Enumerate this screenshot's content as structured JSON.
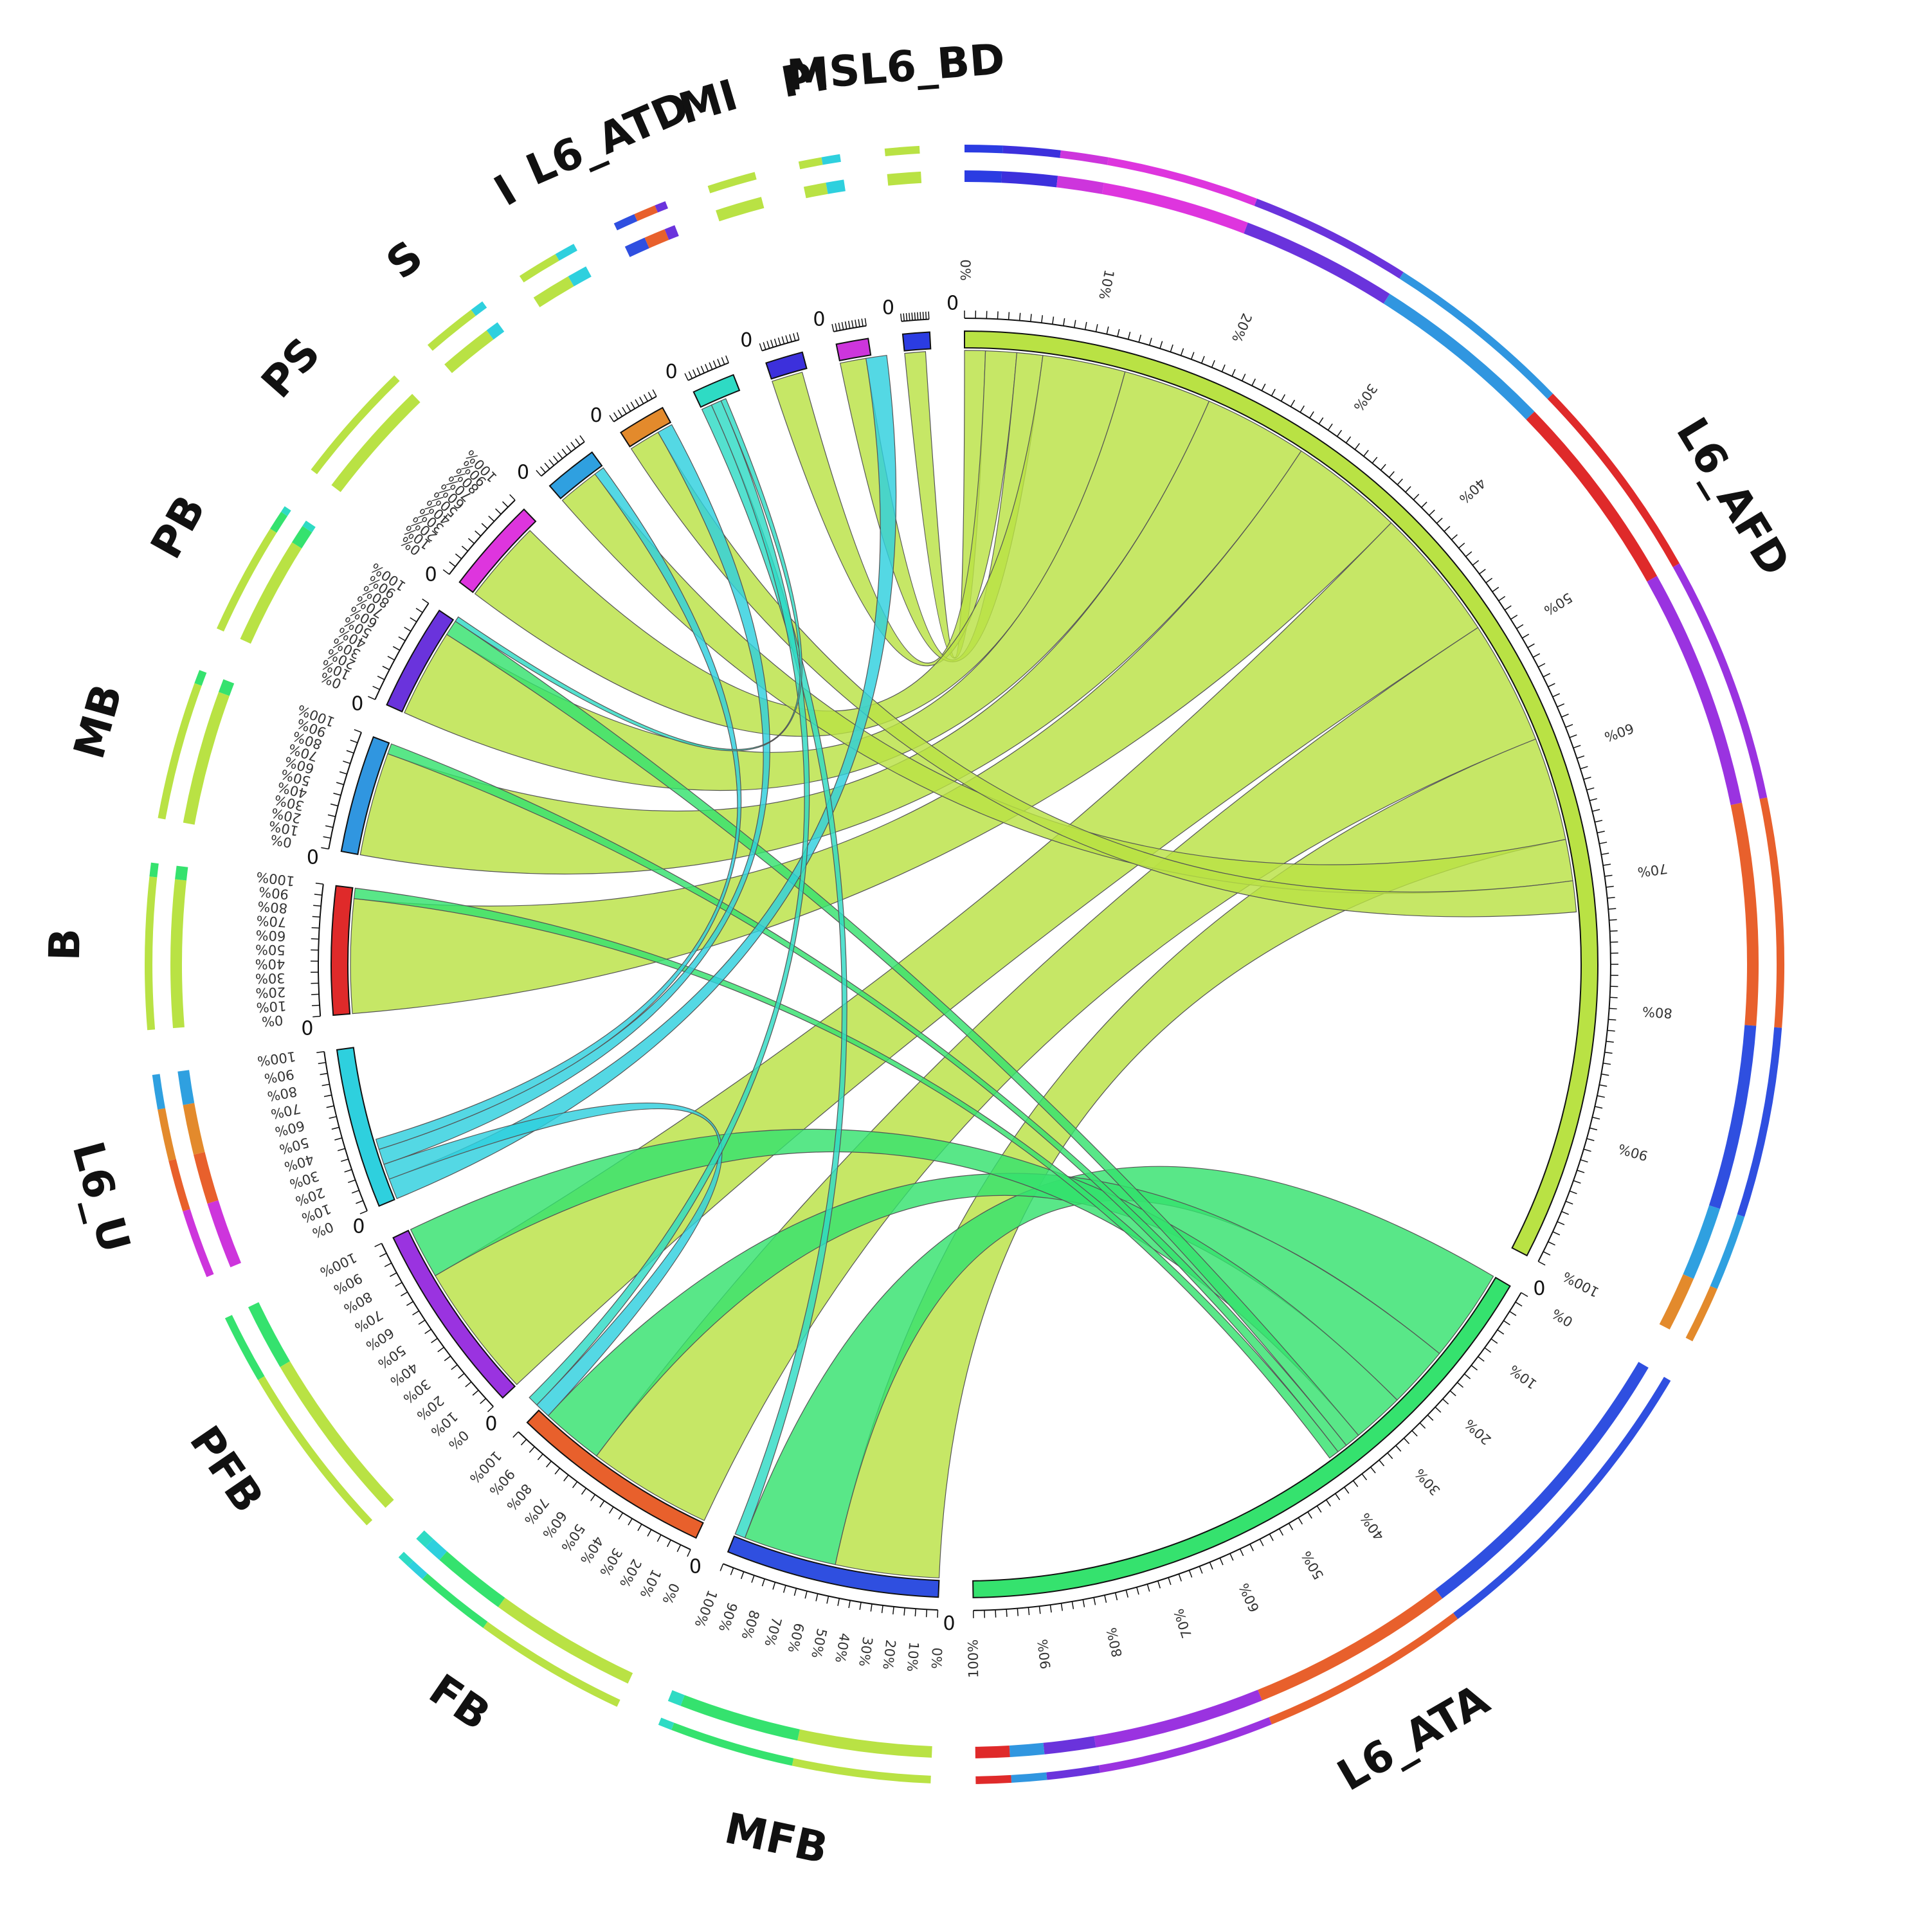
{
  "chart_data": {
    "type": "chord",
    "title": "",
    "colors": {
      "L6_AFD": "#b9e244",
      "L6_ATA": "#35e26e",
      "MFB": "#2f4fe0",
      "FB": "#e8602c",
      "PFB": "#9a33e0",
      "L6_U": "#2ed0de",
      "B": "#df2a2a",
      "MB": "#3096e0",
      "PB": "#6a33dc",
      "PS": "#de35de",
      "S": "#2fa0e0",
      "I": "#e38a2c",
      "L6_ATD": "#2edbc4",
      "MI": "#3c30dc",
      "PI": "#cd35dc",
      "MSL6_BD": "#2b3ce2"
    },
    "segments": [
      {
        "name": "L6_AFD",
        "size": 240
      },
      {
        "name": "L6_ATA",
        "size": 120
      },
      {
        "name": "MFB",
        "size": 40
      },
      {
        "name": "FB",
        "size": 38
      },
      {
        "name": "PFB",
        "size": 36
      },
      {
        "name": "L6_U",
        "size": 30
      },
      {
        "name": "B",
        "size": 24
      },
      {
        "name": "MB",
        "size": 22
      },
      {
        "name": "PB",
        "size": 20
      },
      {
        "name": "PS",
        "size": 18
      },
      {
        "name": "S",
        "size": 10
      },
      {
        "name": "I",
        "size": 9
      },
      {
        "name": "L6_ATD",
        "size": 8
      },
      {
        "name": "MI",
        "size": 7
      },
      {
        "name": "PI",
        "size": 6
      },
      {
        "name": "MSL6_BD",
        "size": 5
      }
    ],
    "links": [
      {
        "source": "L6_AFD",
        "target": "MSL6_BD",
        "value": 4
      },
      {
        "source": "L6_AFD",
        "target": "MI",
        "value": 6
      },
      {
        "source": "L6_AFD",
        "target": "PI",
        "value": 5
      },
      {
        "source": "L6_AFD",
        "target": "PS",
        "value": 16
      },
      {
        "source": "L6_AFD",
        "target": "PB",
        "value": 17
      },
      {
        "source": "L6_AFD",
        "target": "MB",
        "value": 20
      },
      {
        "source": "L6_AFD",
        "target": "B",
        "value": 22
      },
      {
        "source": "L6_AFD",
        "target": "PFB",
        "value": 26
      },
      {
        "source": "L6_AFD",
        "target": "FB",
        "value": 24
      },
      {
        "source": "L6_AFD",
        "target": "MFB",
        "value": 20
      },
      {
        "source": "L6_AFD",
        "target": "S",
        "value": 8
      },
      {
        "source": "L6_AFD",
        "target": "I",
        "value": 6
      },
      {
        "source": "L6_ATA",
        "target": "MFB",
        "value": 18
      },
      {
        "source": "L6_ATA",
        "target": "FB",
        "value": 12
      },
      {
        "source": "L6_ATA",
        "target": "PFB",
        "value": 10
      },
      {
        "source": "L6_ATA",
        "target": "PB",
        "value": 3
      },
      {
        "source": "L6_ATA",
        "target": "MB",
        "value": 2
      },
      {
        "source": "L6_ATA",
        "target": "B",
        "value": 2
      },
      {
        "source": "L6_U",
        "target": "PI",
        "value": 4
      },
      {
        "source": "L6_U",
        "target": "FB",
        "value": 3
      },
      {
        "source": "L6_U",
        "target": "I",
        "value": 3
      },
      {
        "source": "L6_U",
        "target": "S",
        "value": 2
      },
      {
        "source": "L6_ATD",
        "target": "MFB",
        "value": 2
      },
      {
        "source": "L6_ATD",
        "target": "FB",
        "value": 2
      },
      {
        "source": "L6_ATD",
        "target": "PB",
        "value": 1
      }
    ]
  },
  "labels": {
    "zero": "0",
    "percent_ticks": [
      "0%",
      "10%",
      "20%",
      "30%",
      "40%",
      "50%",
      "60%",
      "70%",
      "80%",
      "90%",
      "100%"
    ]
  }
}
